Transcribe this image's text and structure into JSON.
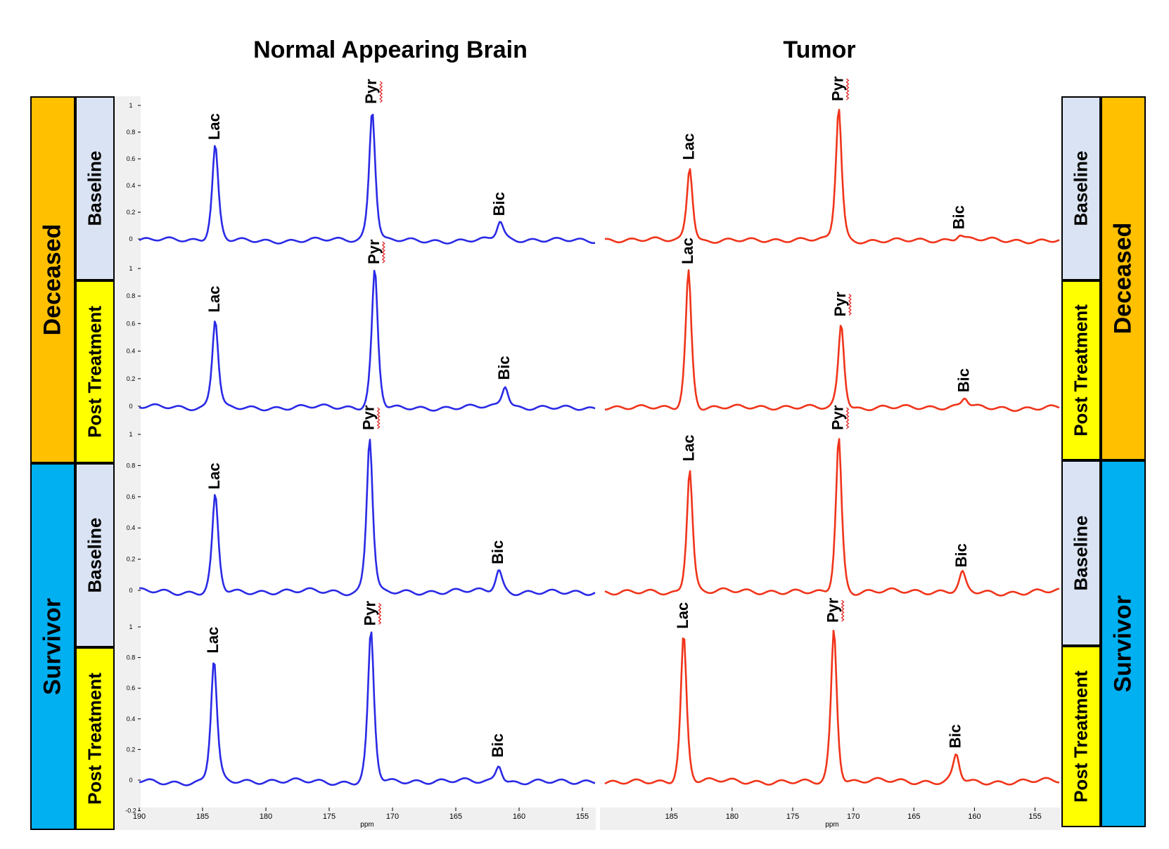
{
  "titles": {
    "left": "Normal Appearing Brain",
    "right": "Tumor"
  },
  "groups": {
    "deceased": "Deceased",
    "survivor": "Survivor"
  },
  "conditions": {
    "baseline": "Baseline",
    "post": "Post Treatment"
  },
  "colors": {
    "deceased_fill": "#FFC000",
    "survivor_fill": "#00B0F0",
    "baseline_fill": "#DAE3F3",
    "post_fill": "#FFFF00",
    "brain_line": "#2A2AE6",
    "tumor_line": "#F0341A"
  },
  "chart_data": [
    {
      "type": "line",
      "name": "Normal Appearing Brain",
      "x_axis_label": "ppm",
      "x_range": [
        190,
        154
      ],
      "x_ticks": [
        "190",
        "185",
        "180",
        "175",
        "170",
        "165",
        "160",
        "155"
      ],
      "y_ticks": [
        "-0.2",
        "0",
        "0.2",
        "0.4",
        "0.6",
        "0.8",
        "1"
      ],
      "y_range": [
        -0.2,
        1.1
      ],
      "color": "#2A2AE6",
      "peak_labels": [
        "Lac",
        "Pyr",
        "Bic"
      ],
      "panels": [
        {
          "group": "Deceased",
          "condition": "Baseline",
          "peaks": {
            "Lac": {
              "ppm": 184.0,
              "height": 0.71
            },
            "Pyr": {
              "ppm": 171.6,
              "height": 0.98
            },
            "Bic": {
              "ppm": 161.5,
              "height": 0.14
            }
          }
        },
        {
          "group": "Deceased",
          "condition": "Post Treatment",
          "peaks": {
            "Lac": {
              "ppm": 184.0,
              "height": 0.65
            },
            "Pyr": {
              "ppm": 171.4,
              "height": 1.0
            },
            "Bic": {
              "ppm": 161.1,
              "height": 0.16
            }
          }
        },
        {
          "group": "Survivor",
          "condition": "Baseline",
          "peaks": {
            "Lac": {
              "ppm": 184.0,
              "height": 0.62
            },
            "Pyr": {
              "ppm": 171.8,
              "height": 1.0
            },
            "Bic": {
              "ppm": 161.6,
              "height": 0.14
            }
          }
        },
        {
          "group": "Survivor",
          "condition": "Post Treatment",
          "peaks": {
            "Lac": {
              "ppm": 184.1,
              "height": 0.8
            },
            "Pyr": {
              "ppm": 171.7,
              "height": 0.98
            },
            "Bic": {
              "ppm": 161.6,
              "height": 0.12
            }
          }
        }
      ]
    },
    {
      "type": "line",
      "name": "Tumor",
      "x_axis_label": "ppm",
      "x_range": [
        190,
        153
      ],
      "x_ticks": [
        "185",
        "180",
        "175",
        "170",
        "165",
        "160",
        "155"
      ],
      "color": "#F0341A",
      "peak_labels": [
        "Lac",
        "Pyr",
        "Bic"
      ],
      "panels": [
        {
          "group": "Deceased",
          "condition": "Baseline",
          "peaks": {
            "Lac": {
              "ppm": 183.5,
              "height": 0.56
            },
            "Pyr": {
              "ppm": 171.2,
              "height": 1.0
            },
            "Bic": {
              "ppm": 161.2,
              "height": 0.04
            }
          }
        },
        {
          "group": "Deceased",
          "condition": "Post Treatment",
          "peaks": {
            "Lac": {
              "ppm": 183.6,
              "height": 1.0
            },
            "Pyr": {
              "ppm": 171.0,
              "height": 0.62
            },
            "Bic": {
              "ppm": 160.8,
              "height": 0.07
            }
          }
        },
        {
          "group": "Survivor",
          "condition": "Baseline",
          "peaks": {
            "Lac": {
              "ppm": 183.5,
              "height": 0.8
            },
            "Pyr": {
              "ppm": 171.2,
              "height": 1.0
            },
            "Bic": {
              "ppm": 161.0,
              "height": 0.12
            }
          }
        },
        {
          "group": "Survivor",
          "condition": "Post Treatment",
          "peaks": {
            "Lac": {
              "ppm": 184.0,
              "height": 0.96
            },
            "Pyr": {
              "ppm": 171.6,
              "height": 1.0
            },
            "Bic": {
              "ppm": 161.5,
              "height": 0.18
            }
          }
        }
      ]
    }
  ]
}
